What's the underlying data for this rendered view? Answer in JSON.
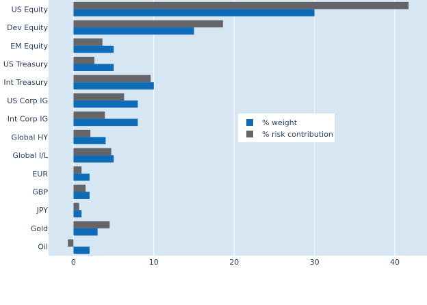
{
  "chart_data": {
    "type": "bar",
    "orientation": "horizontal",
    "categories": [
      "US Equity",
      "Dev Equity",
      "EM Equity",
      "US Treasury",
      "Int Treasury",
      "US Corp IG",
      "Int Corp IG",
      "Global HY",
      "Global I/L",
      "EUR",
      "GBP",
      "JPY",
      "Gold",
      "Oil"
    ],
    "series": [
      {
        "name": "% weight",
        "color": "#0e6bb8",
        "values": [
          30,
          15,
          5,
          5,
          10,
          8,
          8,
          4,
          5,
          2,
          2,
          1,
          3,
          2
        ]
      },
      {
        "name": "% risk contribution",
        "color": "#646469",
        "values": [
          41.7,
          18.6,
          3.6,
          2.6,
          9.6,
          6.3,
          3.9,
          2.1,
          4.7,
          1.0,
          1.5,
          0.7,
          4.5,
          -0.7
        ]
      }
    ],
    "xlim": [
      -3.1,
      44
    ],
    "xticks": [
      0,
      10,
      20,
      30,
      40
    ],
    "title": "",
    "xlabel": "",
    "ylabel": "",
    "grid": true,
    "legend_position": "center-right",
    "plot_background": "#d6e6f3",
    "grid_color": "#ffffff"
  }
}
